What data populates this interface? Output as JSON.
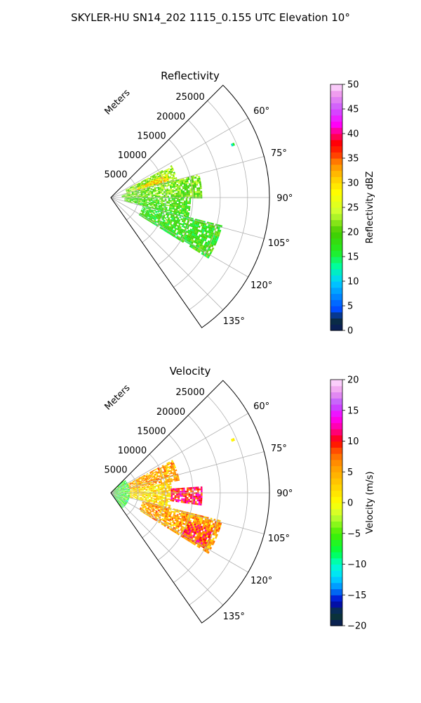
{
  "figure": {
    "suptitle": "SKYLER-HU  SN14_202  1115_0.155 UTC Elevation 10°"
  },
  "chart_data": [
    {
      "type": "heatmap",
      "subtype": "polar-sector",
      "title": "Reflectivity",
      "radial_label": "Meters",
      "theta_range_deg": [
        45,
        145
      ],
      "r_range": [
        0,
        29000
      ],
      "radial_ticks": [
        5000,
        10000,
        15000,
        20000,
        25000
      ],
      "radial_tick_labels": [
        "5000",
        "10000",
        "15000",
        "20000",
        "25000"
      ],
      "angular_ticks": [
        60,
        75,
        90,
        105,
        120,
        135
      ],
      "angular_tick_labels": [
        "60°",
        "75°",
        "90°",
        "105°",
        "120°",
        "135°"
      ],
      "grid": true,
      "colorbar": {
        "label": "Reflectivity dBZ",
        "range": [
          0,
          50
        ],
        "ticks": [
          0,
          5,
          10,
          15,
          20,
          25,
          30,
          35,
          40,
          45,
          50
        ],
        "tick_labels": [
          "0",
          "5",
          "10",
          "15",
          "20",
          "25",
          "30",
          "35",
          "40",
          "45",
          "50"
        ]
      },
      "echo_regions": [
        {
          "az": [
            62,
            75
          ],
          "r": [
            3000,
            12500
          ],
          "value": 22
        },
        {
          "az": [
            75,
            90
          ],
          "r": [
            2000,
            16500
          ],
          "value": 21
        },
        {
          "az": [
            90,
            104
          ],
          "r": [
            2500,
            14500
          ],
          "value": 19
        },
        {
          "az": [
            104,
            122
          ],
          "r": [
            6000,
            21000
          ],
          "value": 18
        },
        {
          "az": [
            68,
            74
          ],
          "r": [
            5000,
            11000
          ],
          "value": 30
        },
        {
          "az": [
            66,
            67
          ],
          "r": [
            24000,
            24500
          ],
          "value": 15
        }
      ]
    },
    {
      "type": "heatmap",
      "subtype": "polar-sector",
      "title": "Velocity",
      "radial_label": "Meters",
      "theta_range_deg": [
        45,
        145
      ],
      "r_range": [
        0,
        29000
      ],
      "radial_ticks": [
        5000,
        10000,
        15000,
        20000,
        25000
      ],
      "radial_tick_labels": [
        "5000",
        "10000",
        "15000",
        "20000",
        "25000"
      ],
      "angular_ticks": [
        60,
        75,
        90,
        105,
        120,
        135
      ],
      "angular_tick_labels": [
        "60°",
        "75°",
        "90°",
        "105°",
        "120°",
        "135°"
      ],
      "grid": true,
      "colorbar": {
        "label": "Velocity (m/s)",
        "range": [
          -20,
          20
        ],
        "ticks": [
          -20,
          -15,
          -10,
          -5,
          0,
          5,
          10,
          15,
          20
        ],
        "tick_labels": [
          "−20",
          "−15",
          "−10",
          "−5",
          "0",
          "5",
          "10",
          "15",
          "20"
        ]
      },
      "echo_regions": [
        {
          "az": [
            45,
            145
          ],
          "r": [
            0,
            3500
          ],
          "value": -6
        },
        {
          "az": [
            62,
            80
          ],
          "r": [
            3500,
            12500
          ],
          "value": 5
        },
        {
          "az": [
            80,
            104
          ],
          "r": [
            3500,
            11000
          ],
          "value": 2
        },
        {
          "az": [
            86,
            98
          ],
          "r": [
            11000,
            16500
          ],
          "value": 10
        },
        {
          "az": [
            104,
            122
          ],
          "r": [
            6000,
            21000
          ],
          "value": 5
        },
        {
          "az": [
            110,
            120
          ],
          "r": [
            15000,
            20000
          ],
          "value": 9
        },
        {
          "az": [
            66,
            67
          ],
          "r": [
            24000,
            24500
          ],
          "value": 3
        }
      ]
    }
  ]
}
